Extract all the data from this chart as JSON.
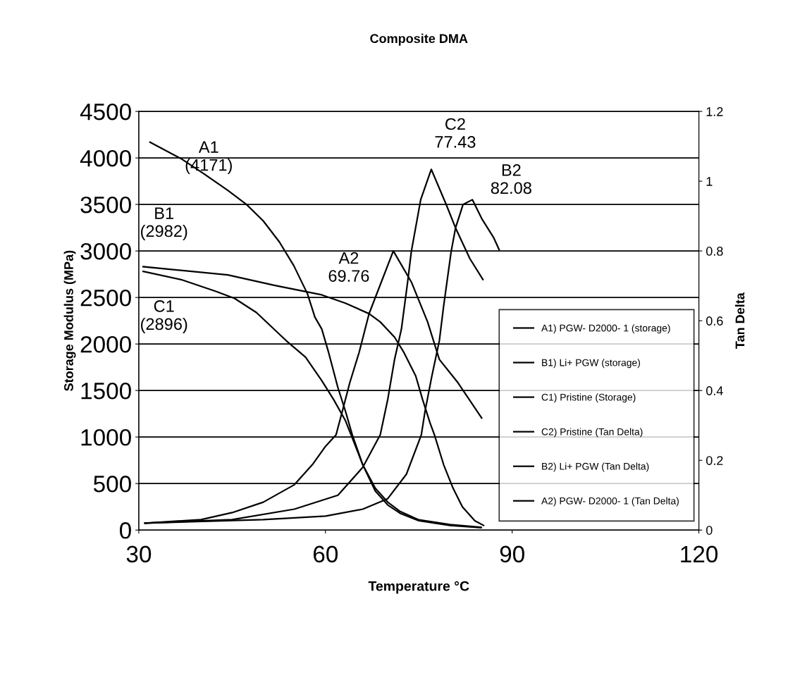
{
  "chart_data": {
    "type": "line",
    "title": "Composite DMA",
    "xlabel": "Temperature °C",
    "ylabel": "Storage Modulus (MPa)",
    "y2label": "Tan Delta",
    "xlim": [
      30,
      120
    ],
    "xticks": [
      30,
      60,
      90,
      120
    ],
    "ylim": [
      0,
      4500
    ],
    "yticks": [
      0,
      500,
      1000,
      1500,
      2000,
      2500,
      3000,
      3500,
      4000,
      4500
    ],
    "y2lim": [
      0,
      1.2
    ],
    "y2ticks": [
      0,
      0.2,
      0.4,
      0.6,
      0.8,
      1,
      1.2
    ],
    "grid": "y",
    "legend": "right",
    "line_style": "solid",
    "marker": "none",
    "series": [
      {
        "name": "A1) PGW- D2000- 1 (storage)",
        "color": "#000000",
        "x": [
          31.8,
          36.8,
          40.5,
          44.3,
          47.3,
          50.0,
          52.6,
          54.9,
          57.1,
          58.3,
          59.4,
          60.5,
          62.0,
          63.2,
          64.3,
          66,
          68,
          70,
          72,
          75,
          80,
          85
        ],
        "values": [
          4169,
          3992,
          3828,
          3651,
          3500,
          3323,
          3096,
          2843,
          2540,
          2288,
          2161,
          1909,
          1530,
          1280,
          1025,
          700,
          450,
          300,
          200,
          110,
          60,
          30
        ]
      },
      {
        "name": "B1) Li+ PGW (storage)",
        "color": "#000000",
        "x": [
          30.7,
          44.3,
          51.9,
          59.4,
          63.2,
          67.0,
          68.8,
          71.1,
          72.6,
          74.5,
          75.6,
          76.8,
          77.5,
          79,
          80.5,
          82,
          84,
          85.4
        ],
        "values": [
          2831,
          2742,
          2629,
          2528,
          2439,
          2326,
          2237,
          2073,
          1909,
          1657,
          1404,
          1152,
          1025,
          700,
          450,
          250,
          100,
          50
        ]
      },
      {
        "name": "C1) Pristine (Storage)",
        "color": "#000000",
        "x": [
          30.7,
          36.8,
          42.4,
          45.4,
          48.9,
          53.7,
          56.8,
          59.4,
          61.3,
          63.2,
          64.1,
          66,
          68,
          70,
          72,
          75,
          80,
          85
        ],
        "values": [
          2780,
          2692,
          2566,
          2490,
          2338,
          2035,
          1858,
          1606,
          1404,
          1177,
          1025,
          700,
          420,
          270,
          180,
          100,
          50,
          25
        ]
      },
      {
        "name": "C2) Pristine (Tan Delta)",
        "color": "#000000",
        "axis": "y2",
        "x": [
          31,
          45,
          55,
          62,
          66,
          68.8,
          70.0,
          71.1,
          72.2,
          73.2,
          73.8,
          75.3,
          77.0,
          79.4,
          80.9,
          83.2,
          85.3
        ],
        "values": [
          0.02,
          0.03,
          0.06,
          0.1,
          0.18,
          0.273,
          0.374,
          0.489,
          0.576,
          0.711,
          0.799,
          0.947,
          1.034,
          0.933,
          0.866,
          0.778,
          0.718
        ]
      },
      {
        "name": "B2) Li+ PGW (Tan Delta)",
        "color": "#000000",
        "axis": "y2",
        "x": [
          31,
          50,
          60,
          66,
          70,
          73,
          75.4,
          76.0,
          77.1,
          78.3,
          79.0,
          80.2,
          80.9,
          82.1,
          83.6,
          85.1,
          87.0,
          87.9
        ],
        "values": [
          0.02,
          0.03,
          0.04,
          0.06,
          0.09,
          0.16,
          0.273,
          0.341,
          0.442,
          0.543,
          0.644,
          0.799,
          0.866,
          0.933,
          0.947,
          0.893,
          0.839,
          0.804
        ]
      },
      {
        "name": "A2) PGW- D2000- 1 (Tan Delta)",
        "color": "#000000",
        "axis": "y2",
        "x": [
          31,
          40,
          45,
          50,
          55,
          58,
          60,
          61.7,
          62.8,
          63.9,
          65.4,
          67.0,
          70.9,
          73.8,
          76.4,
          78.3,
          81.3,
          85.1
        ],
        "values": [
          0.02,
          0.03,
          0.05,
          0.08,
          0.13,
          0.19,
          0.24,
          0.273,
          0.347,
          0.422,
          0.509,
          0.62,
          0.8,
          0.711,
          0.597,
          0.489,
          0.422,
          0.321
        ]
      }
    ],
    "annotations": [
      "A1\n(4171)",
      "B1\n(2982)",
      "C1\n(2896)",
      "C2\n77.43",
      "B2\n82.08",
      "A2\n69.76"
    ]
  }
}
